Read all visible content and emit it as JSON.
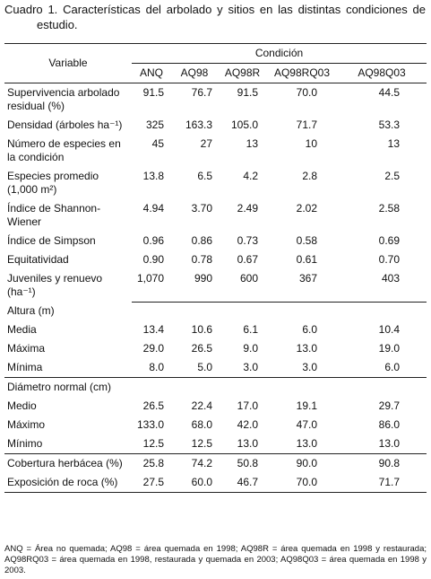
{
  "title": "Cuadro 1. Características del arbolado y sitios en las distintas condiciones de estudio.",
  "table": {
    "header": {
      "variable": "Variable",
      "group": "Condición",
      "columns": [
        "ANQ",
        "AQ98",
        "AQ98R",
        "AQ98RQ03",
        "AQ98Q03"
      ]
    },
    "rows": [
      {
        "label": "Supervivencia arbolado residual (%)",
        "values": [
          "91.5",
          "76.7",
          "91.5",
          "70.0",
          "44.5"
        ]
      },
      {
        "label": "Densidad (árboles ha⁻¹)",
        "values": [
          "325",
          "163.3",
          "105.0",
          "71.7",
          "53.3"
        ]
      },
      {
        "label": "Número de especies en la condición",
        "values": [
          "45",
          "27",
          "13",
          "10",
          "13"
        ]
      },
      {
        "label": "Especies promedio (1,000 m²)",
        "values": [
          "13.8",
          "6.5",
          "4.2",
          "2.8",
          "2.5"
        ]
      },
      {
        "label": "Índice de Shannon-Wiener",
        "values": [
          "4.94",
          "3.70",
          "2.49",
          "2.02",
          "2.58"
        ]
      },
      {
        "label": "Índice de Simpson",
        "values": [
          "0.96",
          "0.86",
          "0.73",
          "0.58",
          "0.69"
        ]
      },
      {
        "label": "Equitatividad",
        "values": [
          "0.90",
          "0.78",
          "0.67",
          "0.61",
          "0.70"
        ]
      },
      {
        "label": "Juveniles y renuevo (ha⁻¹)",
        "values": [
          "1,070",
          "990",
          "600",
          "367",
          "403"
        ]
      },
      {
        "heading": "Altura (m)"
      },
      {
        "label": "Media",
        "values": [
          "13.4",
          "10.6",
          "6.1",
          "6.0",
          "10.4"
        ]
      },
      {
        "label": "Máxima",
        "values": [
          "29.0",
          "26.5",
          "9.0",
          "13.0",
          "19.0"
        ]
      },
      {
        "label": "Mínima",
        "values": [
          "8.0",
          "5.0",
          "3.0",
          "3.0",
          "6.0"
        ]
      },
      {
        "heading": "Diámetro normal (cm)"
      },
      {
        "label": "Medio",
        "values": [
          "26.5",
          "22.4",
          "17.0",
          "19.1",
          "29.7"
        ]
      },
      {
        "label": "Máximo",
        "values": [
          "133.0",
          "68.0",
          "42.0",
          "47.0",
          "86.0"
        ]
      },
      {
        "label": "Mínimo",
        "values": [
          "12.5",
          "12.5",
          "13.0",
          "13.0",
          "13.0"
        ]
      },
      {
        "label": "Cobertura herbácea (%)",
        "values": [
          "25.8",
          "74.2",
          "50.8",
          "90.0",
          "90.8"
        ]
      },
      {
        "label": "Exposición de roca (%)",
        "values": [
          "27.5",
          "60.0",
          "46.7",
          "70.0",
          "71.7"
        ]
      }
    ]
  },
  "footnote": "ANQ = Área no quemada; AQ98 = área quemada en 1998; AQ98R = área quemada en 1998 y restaurada; AQ98RQ03 = área quemada en 1998, restaurada y quemada en 2003; AQ98Q03 = área quemada en 1998 y 2003."
}
